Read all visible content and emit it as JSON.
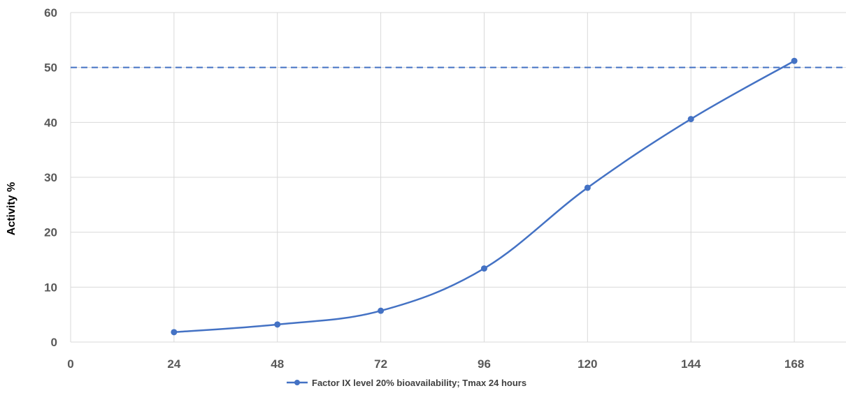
{
  "chart_data": {
    "type": "line",
    "title": "",
    "xlabel": "",
    "ylabel": "Activity %",
    "xlim": [
      0,
      180
    ],
    "ylim": [
      0,
      60
    ],
    "x_ticks": [
      0,
      24,
      48,
      72,
      96,
      120,
      144,
      168
    ],
    "y_ticks": [
      0,
      10,
      20,
      30,
      40,
      50,
      60
    ],
    "grid": true,
    "legend_position": "bottom",
    "reference_line": {
      "y": 50,
      "style": "dashed",
      "color": "#4472c4"
    },
    "series": [
      {
        "name": "Factor IX level 20% bioavailability; Tmax 24 hours",
        "color": "#4472c4",
        "x": [
          24,
          48,
          72,
          96,
          120,
          144,
          168
        ],
        "y": [
          1.8,
          3.2,
          5.7,
          13.4,
          28.1,
          40.6,
          51.2
        ]
      }
    ]
  }
}
